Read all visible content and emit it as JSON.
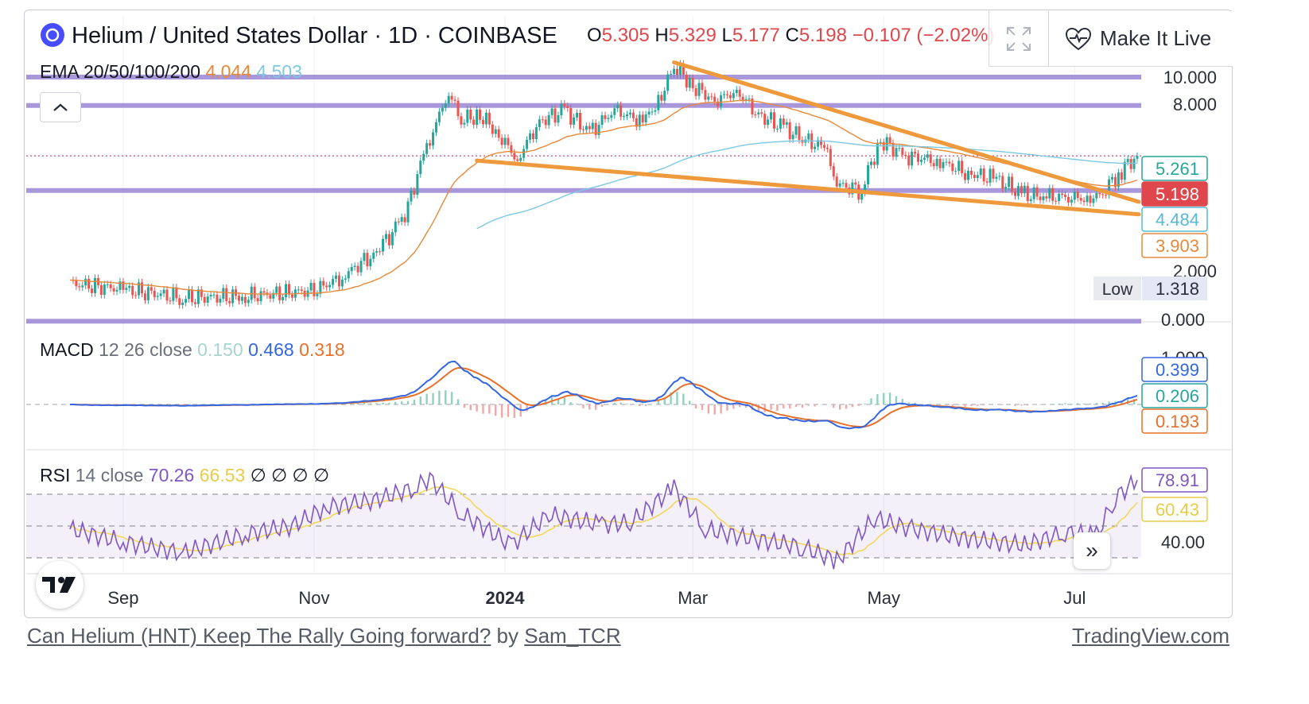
{
  "chart_data": {
    "type": "candlestick",
    "symbol": "Helium / United States Dollar",
    "interval": "1D",
    "exchange": "COINBASE",
    "ohlc": {
      "open_label": "O",
      "open": "5.305",
      "high_label": "H",
      "high": "5.329",
      "low_label": "L",
      "low": "5.177",
      "close_label": "C",
      "close": "5.198",
      "change": "−0.107",
      "change_pct": "(−2.02%)"
    },
    "x_ticks": [
      "Sep",
      "Nov",
      "2024",
      "Mar",
      "May",
      "Jul"
    ],
    "price_axis": {
      "ticks": [
        "10.000",
        "8.000",
        "2.000",
        "0.000"
      ],
      "scale": "log"
    },
    "price_badges": [
      {
        "value": "5.261",
        "color": "#26a69a",
        "style": "outline"
      },
      {
        "value": "5.198",
        "color": "#e0474c",
        "style": "filled"
      },
      {
        "value": "4.484",
        "color": "#56b9d9",
        "style": "outline"
      },
      {
        "value": "3.903",
        "color": "#e8893a",
        "style": "outline"
      }
    ],
    "low_label": "Low",
    "low_value": "1.318",
    "horizontal_levels": [
      10.0,
      7.9,
      3.9,
      1.318
    ],
    "last_price_line": 5.198,
    "series_price": [
      {
        "d": "2023-08-15",
        "c": 1.8
      },
      {
        "d": "2023-09-01",
        "c": 1.72
      },
      {
        "d": "2023-09-20",
        "c": 1.6
      },
      {
        "d": "2023-10-10",
        "c": 1.62
      },
      {
        "d": "2023-11-01",
        "c": 1.7
      },
      {
        "d": "2023-11-10",
        "c": 1.9
      },
      {
        "d": "2023-11-20",
        "c": 2.3
      },
      {
        "d": "2023-11-28",
        "c": 2.9
      },
      {
        "d": "2023-12-01",
        "c": 3.4
      },
      {
        "d": "2023-12-06",
        "c": 5.1
      },
      {
        "d": "2023-12-10",
        "c": 6.8
      },
      {
        "d": "2023-12-14",
        "c": 8.7
      },
      {
        "d": "2023-12-18",
        "c": 7.0
      },
      {
        "d": "2023-12-24",
        "c": 7.3
      },
      {
        "d": "2023-12-30",
        "c": 6.2
      },
      {
        "d": "2024-01-05",
        "c": 5.0
      },
      {
        "d": "2024-01-12",
        "c": 6.9
      },
      {
        "d": "2024-01-20",
        "c": 7.6
      },
      {
        "d": "2024-01-28",
        "c": 6.3
      },
      {
        "d": "2024-02-05",
        "c": 7.6
      },
      {
        "d": "2024-02-14",
        "c": 6.9
      },
      {
        "d": "2024-02-20",
        "c": 8.4
      },
      {
        "d": "2024-02-24",
        "c": 11.0
      },
      {
        "d": "2024-03-01",
        "c": 9.3
      },
      {
        "d": "2024-03-08",
        "c": 8.2
      },
      {
        "d": "2024-03-15",
        "c": 8.9
      },
      {
        "d": "2024-03-22",
        "c": 7.3
      },
      {
        "d": "2024-03-30",
        "c": 6.6
      },
      {
        "d": "2024-04-06",
        "c": 5.9
      },
      {
        "d": "2024-04-12",
        "c": 5.6
      },
      {
        "d": "2024-04-16",
        "c": 4.1
      },
      {
        "d": "2024-04-24",
        "c": 3.9
      },
      {
        "d": "2024-04-30",
        "c": 5.9
      },
      {
        "d": "2024-05-08",
        "c": 5.2
      },
      {
        "d": "2024-05-18",
        "c": 5.0
      },
      {
        "d": "2024-05-28",
        "c": 4.5
      },
      {
        "d": "2024-06-06",
        "c": 4.3
      },
      {
        "d": "2024-06-14",
        "c": 3.8
      },
      {
        "d": "2024-06-22",
        "c": 3.7
      },
      {
        "d": "2024-06-30",
        "c": 3.7
      },
      {
        "d": "2024-07-06",
        "c": 3.6
      },
      {
        "d": "2024-07-10",
        "c": 3.8
      },
      {
        "d": "2024-07-15",
        "c": 4.5
      },
      {
        "d": "2024-07-21",
        "c": 5.198
      }
    ],
    "trendlines": [
      {
        "from": {
          "d": "2024-02-24",
          "v": 11.3
        },
        "to": {
          "d": "2024-07-21",
          "v": 3.55
        }
      },
      {
        "from": {
          "d": "2023-12-23",
          "v": 5.0
        },
        "to": {
          "d": "2024-07-21",
          "v": 3.2
        }
      }
    ],
    "ema": {
      "label": "EMA 20/50/100/200",
      "values": [
        "4.044",
        "4.503"
      ],
      "colors": [
        "#e8893a",
        "#7ec8e3"
      ]
    },
    "macd": {
      "label": "MACD",
      "params": "12 26 close",
      "values": [
        "0.150",
        "0.468",
        "0.318"
      ],
      "colors": [
        "#a8d5cf",
        "#3366e0",
        "#e8702a"
      ],
      "axis_tick": "1.000",
      "badges": [
        {
          "value": "0.399",
          "color": "#3366e0"
        },
        {
          "value": "0.206",
          "color": "#26a69a"
        },
        {
          "value": "0.193",
          "color": "#e8702a"
        }
      ]
    },
    "rsi": {
      "label": "RSI",
      "params": "14 close",
      "values": [
        "70.26",
        "66.53"
      ],
      "colors": [
        "#7e57c2",
        "#f0d85c"
      ],
      "na_marks": [
        "∅",
        "∅",
        "∅",
        "∅"
      ],
      "axis_tick": "40.00",
      "badges": [
        {
          "value": "78.91",
          "color": "#7e57c2"
        },
        {
          "value": "60.43",
          "color": "#e5cc4a"
        }
      ],
      "series": [
        {
          "d": "2023-08-15",
          "v": 48
        },
        {
          "d": "2023-09-01",
          "v": 40
        },
        {
          "d": "2023-09-20",
          "v": 33
        },
        {
          "d": "2023-10-10",
          "v": 45
        },
        {
          "d": "2023-10-25",
          "v": 50
        },
        {
          "d": "2023-11-05",
          "v": 62
        },
        {
          "d": "2023-11-20",
          "v": 66
        },
        {
          "d": "2023-12-03",
          "v": 74
        },
        {
          "d": "2023-12-08",
          "v": 80
        },
        {
          "d": "2023-12-18",
          "v": 58
        },
        {
          "d": "2024-01-03",
          "v": 38
        },
        {
          "d": "2024-01-15",
          "v": 57
        },
        {
          "d": "2024-02-01",
          "v": 51
        },
        {
          "d": "2024-02-10",
          "v": 52
        },
        {
          "d": "2024-02-24",
          "v": 74
        },
        {
          "d": "2024-03-05",
          "v": 48
        },
        {
          "d": "2024-03-20",
          "v": 42
        },
        {
          "d": "2024-04-05",
          "v": 37
        },
        {
          "d": "2024-04-16",
          "v": 28
        },
        {
          "d": "2024-04-28",
          "v": 55
        },
        {
          "d": "2024-05-10",
          "v": 48
        },
        {
          "d": "2024-05-28",
          "v": 42
        },
        {
          "d": "2024-06-15",
          "v": 38
        },
        {
          "d": "2024-06-28",
          "v": 46
        },
        {
          "d": "2024-07-08",
          "v": 44
        },
        {
          "d": "2024-07-14",
          "v": 68
        },
        {
          "d": "2024-07-21",
          "v": 78.91
        }
      ]
    }
  },
  "toolbar": {
    "make_live_label": "Make It Live"
  },
  "footer": {
    "idea_title": "Can Helium (HNT) Keep The Rally Going forward?",
    "by": "by",
    "author": "Sam_TCR",
    "site": "TradingView.com"
  },
  "colors": {
    "level_line": "#9b86d6",
    "trendline": "#ee9a3c",
    "up": "#26a69a",
    "down": "#ef5350",
    "grid": "#eef0f4"
  }
}
